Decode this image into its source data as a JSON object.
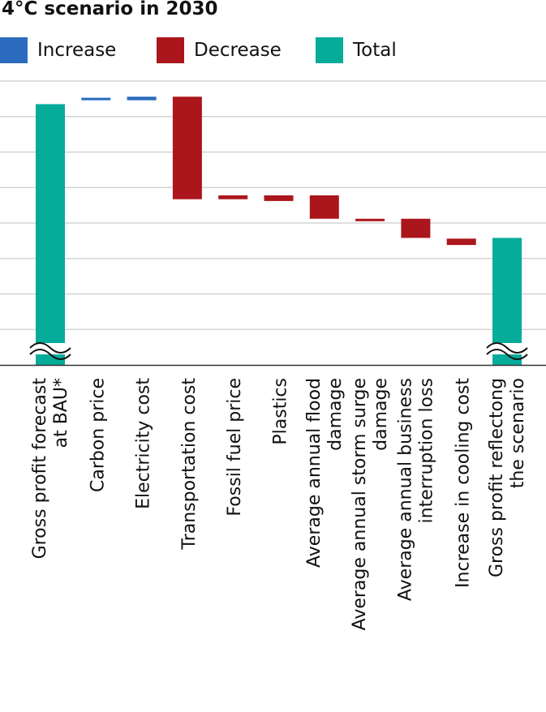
{
  "chart_data": {
    "type": "bar",
    "subtype": "waterfall",
    "title": "4°C scenario in 2030",
    "xlabel": "",
    "ylabel": "",
    "legend": {
      "position": "top",
      "items": [
        {
          "label": "Increase",
          "color": "#2a6bbd"
        },
        {
          "label": "Decrease",
          "color": "#ab161c"
        },
        {
          "label": "Total",
          "color": "#05ac9a"
        }
      ]
    },
    "colors": {
      "increase": "#2a6bbd",
      "decrease": "#ab161c",
      "total": "#05ac9a",
      "grid": "#cccccc",
      "axis": "#333333"
    },
    "grid": true,
    "axis_break": true,
    "y_ticks_labeled": false,
    "ylim": [
      0,
      8
    ],
    "categories": [
      [
        "Gross profit forecast",
        "at BAU*"
      ],
      [
        "Carbon price"
      ],
      [
        "Electricity cost"
      ],
      [
        "Transportation cost"
      ],
      [
        "Fossil fuel price"
      ],
      [
        "Plastics"
      ],
      [
        "Average annual flood",
        "damage"
      ],
      [
        "Average annual storm surge",
        "damage"
      ],
      [
        "Average annual business",
        "interruption loss"
      ],
      [
        "Increase in cooling cost"
      ],
      [
        "Gross profit reflectong",
        "the scenario"
      ]
    ],
    "bars": [
      {
        "kind": "total",
        "start": 0,
        "end": 7.35
      },
      {
        "kind": "increase",
        "start": 7.46,
        "end": 7.53
      },
      {
        "kind": "increase",
        "start": 7.46,
        "end": 7.56
      },
      {
        "kind": "decrease",
        "start": 7.56,
        "end": 4.67
      },
      {
        "kind": "decrease",
        "start": 4.78,
        "end": 4.67
      },
      {
        "kind": "decrease",
        "start": 4.78,
        "end": 4.62
      },
      {
        "kind": "decrease",
        "start": 4.78,
        "end": 4.12
      },
      {
        "kind": "decrease",
        "start": 4.12,
        "end": 4.05
      },
      {
        "kind": "decrease",
        "start": 4.12,
        "end": 3.58
      },
      {
        "kind": "decrease",
        "start": 3.56,
        "end": 3.38
      },
      {
        "kind": "total",
        "start": 0,
        "end": 3.58
      }
    ]
  }
}
